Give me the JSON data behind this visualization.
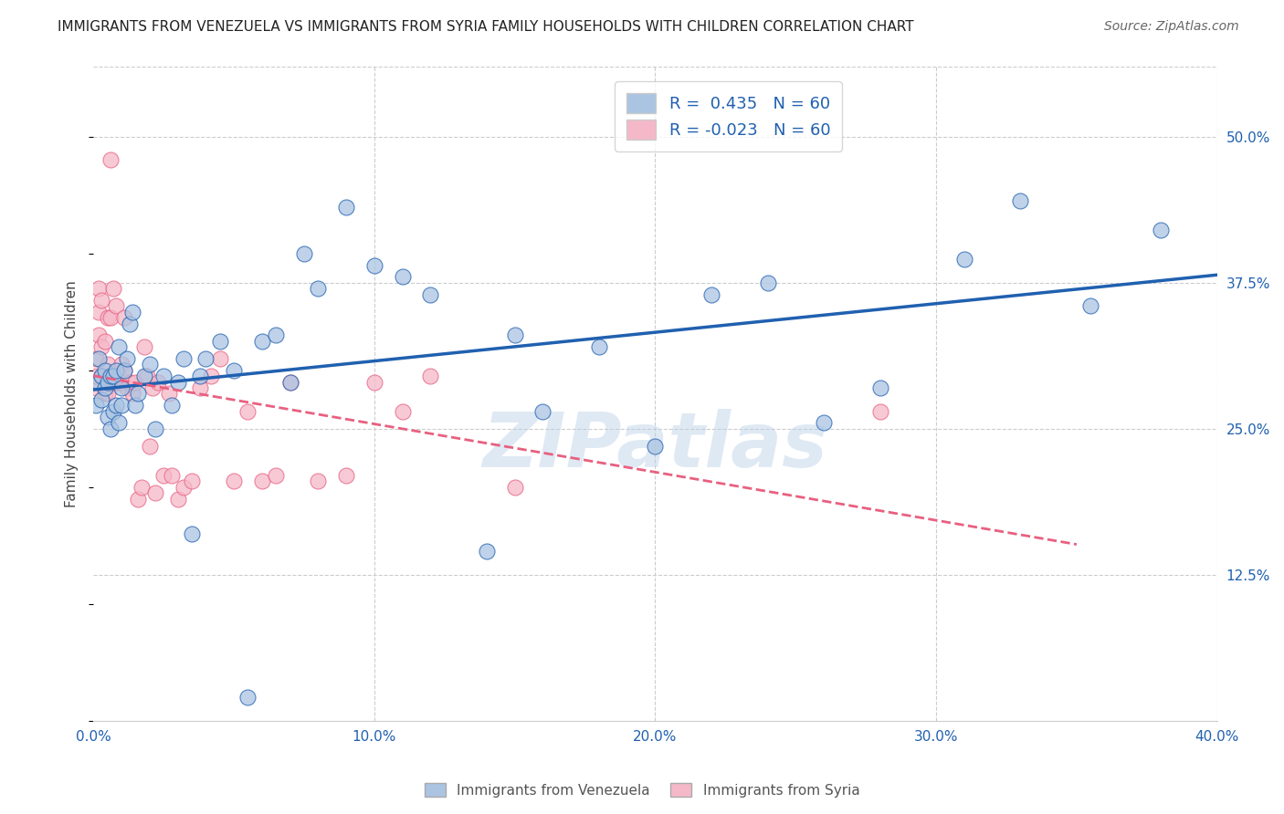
{
  "title": "IMMIGRANTS FROM VENEZUELA VS IMMIGRANTS FROM SYRIA FAMILY HOUSEHOLDS WITH CHILDREN CORRELATION CHART",
  "source": "Source: ZipAtlas.com",
  "ylabel": "Family Households with Children",
  "xlim": [
    0.0,
    0.4
  ],
  "ylim": [
    0.0,
    0.56
  ],
  "xtick_labels": [
    "0.0%",
    "",
    "10.0%",
    "",
    "20.0%",
    "",
    "30.0%",
    "",
    "40.0%"
  ],
  "xtick_vals": [
    0.0,
    0.05,
    0.1,
    0.15,
    0.2,
    0.25,
    0.3,
    0.35,
    0.4
  ],
  "ytick_labels_right": [
    "12.5%",
    "25.0%",
    "37.5%",
    "50.0%"
  ],
  "ytick_vals_right": [
    0.125,
    0.25,
    0.375,
    0.5
  ],
  "R_venezuela": 0.435,
  "N_venezuela": 60,
  "R_syria": -0.023,
  "N_syria": 60,
  "color_venezuela": "#aac4e2",
  "color_syria": "#f5b8c8",
  "line_color_venezuela": "#2060b0",
  "line_color_syria": "#e86080",
  "watermark": "ZIPatlas",
  "venezuela_x": [
    0.001,
    0.002,
    0.002,
    0.003,
    0.003,
    0.004,
    0.004,
    0.005,
    0.005,
    0.006,
    0.006,
    0.007,
    0.007,
    0.008,
    0.008,
    0.009,
    0.009,
    0.01,
    0.01,
    0.011,
    0.012,
    0.013,
    0.014,
    0.015,
    0.016,
    0.018,
    0.02,
    0.022,
    0.025,
    0.028,
    0.03,
    0.032,
    0.035,
    0.038,
    0.04,
    0.045,
    0.05,
    0.055,
    0.06,
    0.065,
    0.07,
    0.075,
    0.08,
    0.09,
    0.1,
    0.11,
    0.12,
    0.14,
    0.15,
    0.16,
    0.18,
    0.2,
    0.22,
    0.24,
    0.26,
    0.28,
    0.31,
    0.33,
    0.355,
    0.38
  ],
  "venezuela_y": [
    0.27,
    0.29,
    0.31,
    0.295,
    0.275,
    0.285,
    0.3,
    0.26,
    0.29,
    0.295,
    0.25,
    0.295,
    0.265,
    0.3,
    0.27,
    0.32,
    0.255,
    0.285,
    0.27,
    0.3,
    0.31,
    0.34,
    0.35,
    0.27,
    0.28,
    0.295,
    0.305,
    0.25,
    0.295,
    0.27,
    0.29,
    0.31,
    0.16,
    0.295,
    0.31,
    0.325,
    0.3,
    0.02,
    0.325,
    0.33,
    0.29,
    0.4,
    0.37,
    0.44,
    0.39,
    0.38,
    0.365,
    0.145,
    0.33,
    0.265,
    0.32,
    0.235,
    0.365,
    0.375,
    0.255,
    0.285,
    0.395,
    0.445,
    0.355,
    0.42
  ],
  "syria_x": [
    0.001,
    0.001,
    0.001,
    0.002,
    0.002,
    0.002,
    0.003,
    0.003,
    0.003,
    0.004,
    0.004,
    0.005,
    0.005,
    0.005,
    0.006,
    0.006,
    0.006,
    0.007,
    0.007,
    0.008,
    0.008,
    0.009,
    0.009,
    0.01,
    0.01,
    0.011,
    0.011,
    0.012,
    0.013,
    0.014,
    0.015,
    0.016,
    0.017,
    0.018,
    0.019,
    0.02,
    0.021,
    0.022,
    0.023,
    0.025,
    0.027,
    0.028,
    0.03,
    0.032,
    0.035,
    0.038,
    0.042,
    0.045,
    0.05,
    0.055,
    0.06,
    0.065,
    0.07,
    0.08,
    0.09,
    0.1,
    0.11,
    0.12,
    0.15,
    0.28
  ],
  "syria_y": [
    0.285,
    0.295,
    0.31,
    0.33,
    0.35,
    0.37,
    0.295,
    0.32,
    0.36,
    0.28,
    0.325,
    0.28,
    0.305,
    0.345,
    0.29,
    0.345,
    0.48,
    0.29,
    0.37,
    0.29,
    0.355,
    0.29,
    0.295,
    0.29,
    0.305,
    0.3,
    0.345,
    0.285,
    0.29,
    0.28,
    0.29,
    0.19,
    0.2,
    0.32,
    0.295,
    0.235,
    0.285,
    0.195,
    0.29,
    0.21,
    0.28,
    0.21,
    0.19,
    0.2,
    0.205,
    0.285,
    0.295,
    0.31,
    0.205,
    0.265,
    0.205,
    0.21,
    0.29,
    0.205,
    0.21,
    0.29,
    0.265,
    0.295,
    0.2,
    0.265
  ]
}
